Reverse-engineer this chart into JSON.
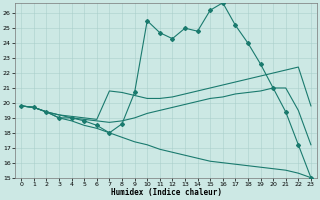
{
  "xlabel": "Humidex (Indice chaleur)",
  "bg_color": "#cce8e4",
  "grid_color": "#aacfcb",
  "line_color": "#1a7a6e",
  "xlim": [
    -0.5,
    23.5
  ],
  "ylim": [
    15,
    26.7
  ],
  "yticks": [
    15,
    16,
    17,
    18,
    19,
    20,
    21,
    22,
    23,
    24,
    25,
    26
  ],
  "xticks": [
    0,
    1,
    2,
    3,
    4,
    5,
    6,
    7,
    8,
    9,
    10,
    11,
    12,
    13,
    14,
    15,
    16,
    17,
    18,
    19,
    20,
    21,
    22,
    23
  ],
  "line1_x": [
    0,
    1,
    2,
    3,
    4,
    5,
    6,
    7,
    8,
    9,
    10,
    11,
    12,
    13,
    14,
    15,
    16,
    17,
    18,
    19,
    20,
    21,
    22,
    23
  ],
  "line1_y": [
    19.8,
    19.7,
    19.4,
    19.0,
    19.0,
    18.8,
    18.5,
    18.0,
    18.6,
    20.7,
    25.5,
    24.7,
    24.3,
    25.0,
    24.8,
    26.2,
    26.7,
    25.2,
    24.0,
    22.6,
    21.0,
    19.4,
    17.2,
    15.0
  ],
  "line2_x": [
    0,
    1,
    2,
    3,
    4,
    5,
    6,
    7,
    8,
    9,
    10,
    11,
    12,
    13,
    14,
    15,
    16,
    17,
    18,
    19,
    20,
    21,
    22,
    23
  ],
  "line2_y": [
    19.8,
    19.7,
    19.4,
    19.2,
    19.1,
    19.0,
    18.9,
    20.8,
    20.7,
    20.5,
    20.3,
    20.3,
    20.4,
    20.6,
    20.8,
    21.0,
    21.2,
    21.4,
    21.6,
    21.8,
    22.0,
    22.2,
    22.4,
    19.8
  ],
  "line3_x": [
    0,
    1,
    2,
    3,
    4,
    5,
    6,
    7,
    8,
    9,
    10,
    11,
    12,
    13,
    14,
    15,
    16,
    17,
    18,
    19,
    20,
    21,
    22,
    23
  ],
  "line3_y": [
    19.8,
    19.7,
    19.4,
    19.2,
    19.0,
    18.9,
    18.8,
    18.7,
    18.8,
    19.0,
    19.3,
    19.5,
    19.7,
    19.9,
    20.1,
    20.3,
    20.4,
    20.6,
    20.7,
    20.8,
    21.0,
    21.0,
    19.5,
    17.2
  ],
  "line4_x": [
    0,
    1,
    2,
    3,
    4,
    5,
    6,
    7,
    8,
    9,
    10,
    11,
    12,
    13,
    14,
    15,
    16,
    17,
    18,
    19,
    20,
    21,
    22,
    23
  ],
  "line4_y": [
    19.8,
    19.7,
    19.4,
    19.0,
    18.8,
    18.5,
    18.3,
    18.0,
    17.7,
    17.4,
    17.2,
    16.9,
    16.7,
    16.5,
    16.3,
    16.1,
    16.0,
    15.9,
    15.8,
    15.7,
    15.6,
    15.5,
    15.3,
    15.0
  ]
}
